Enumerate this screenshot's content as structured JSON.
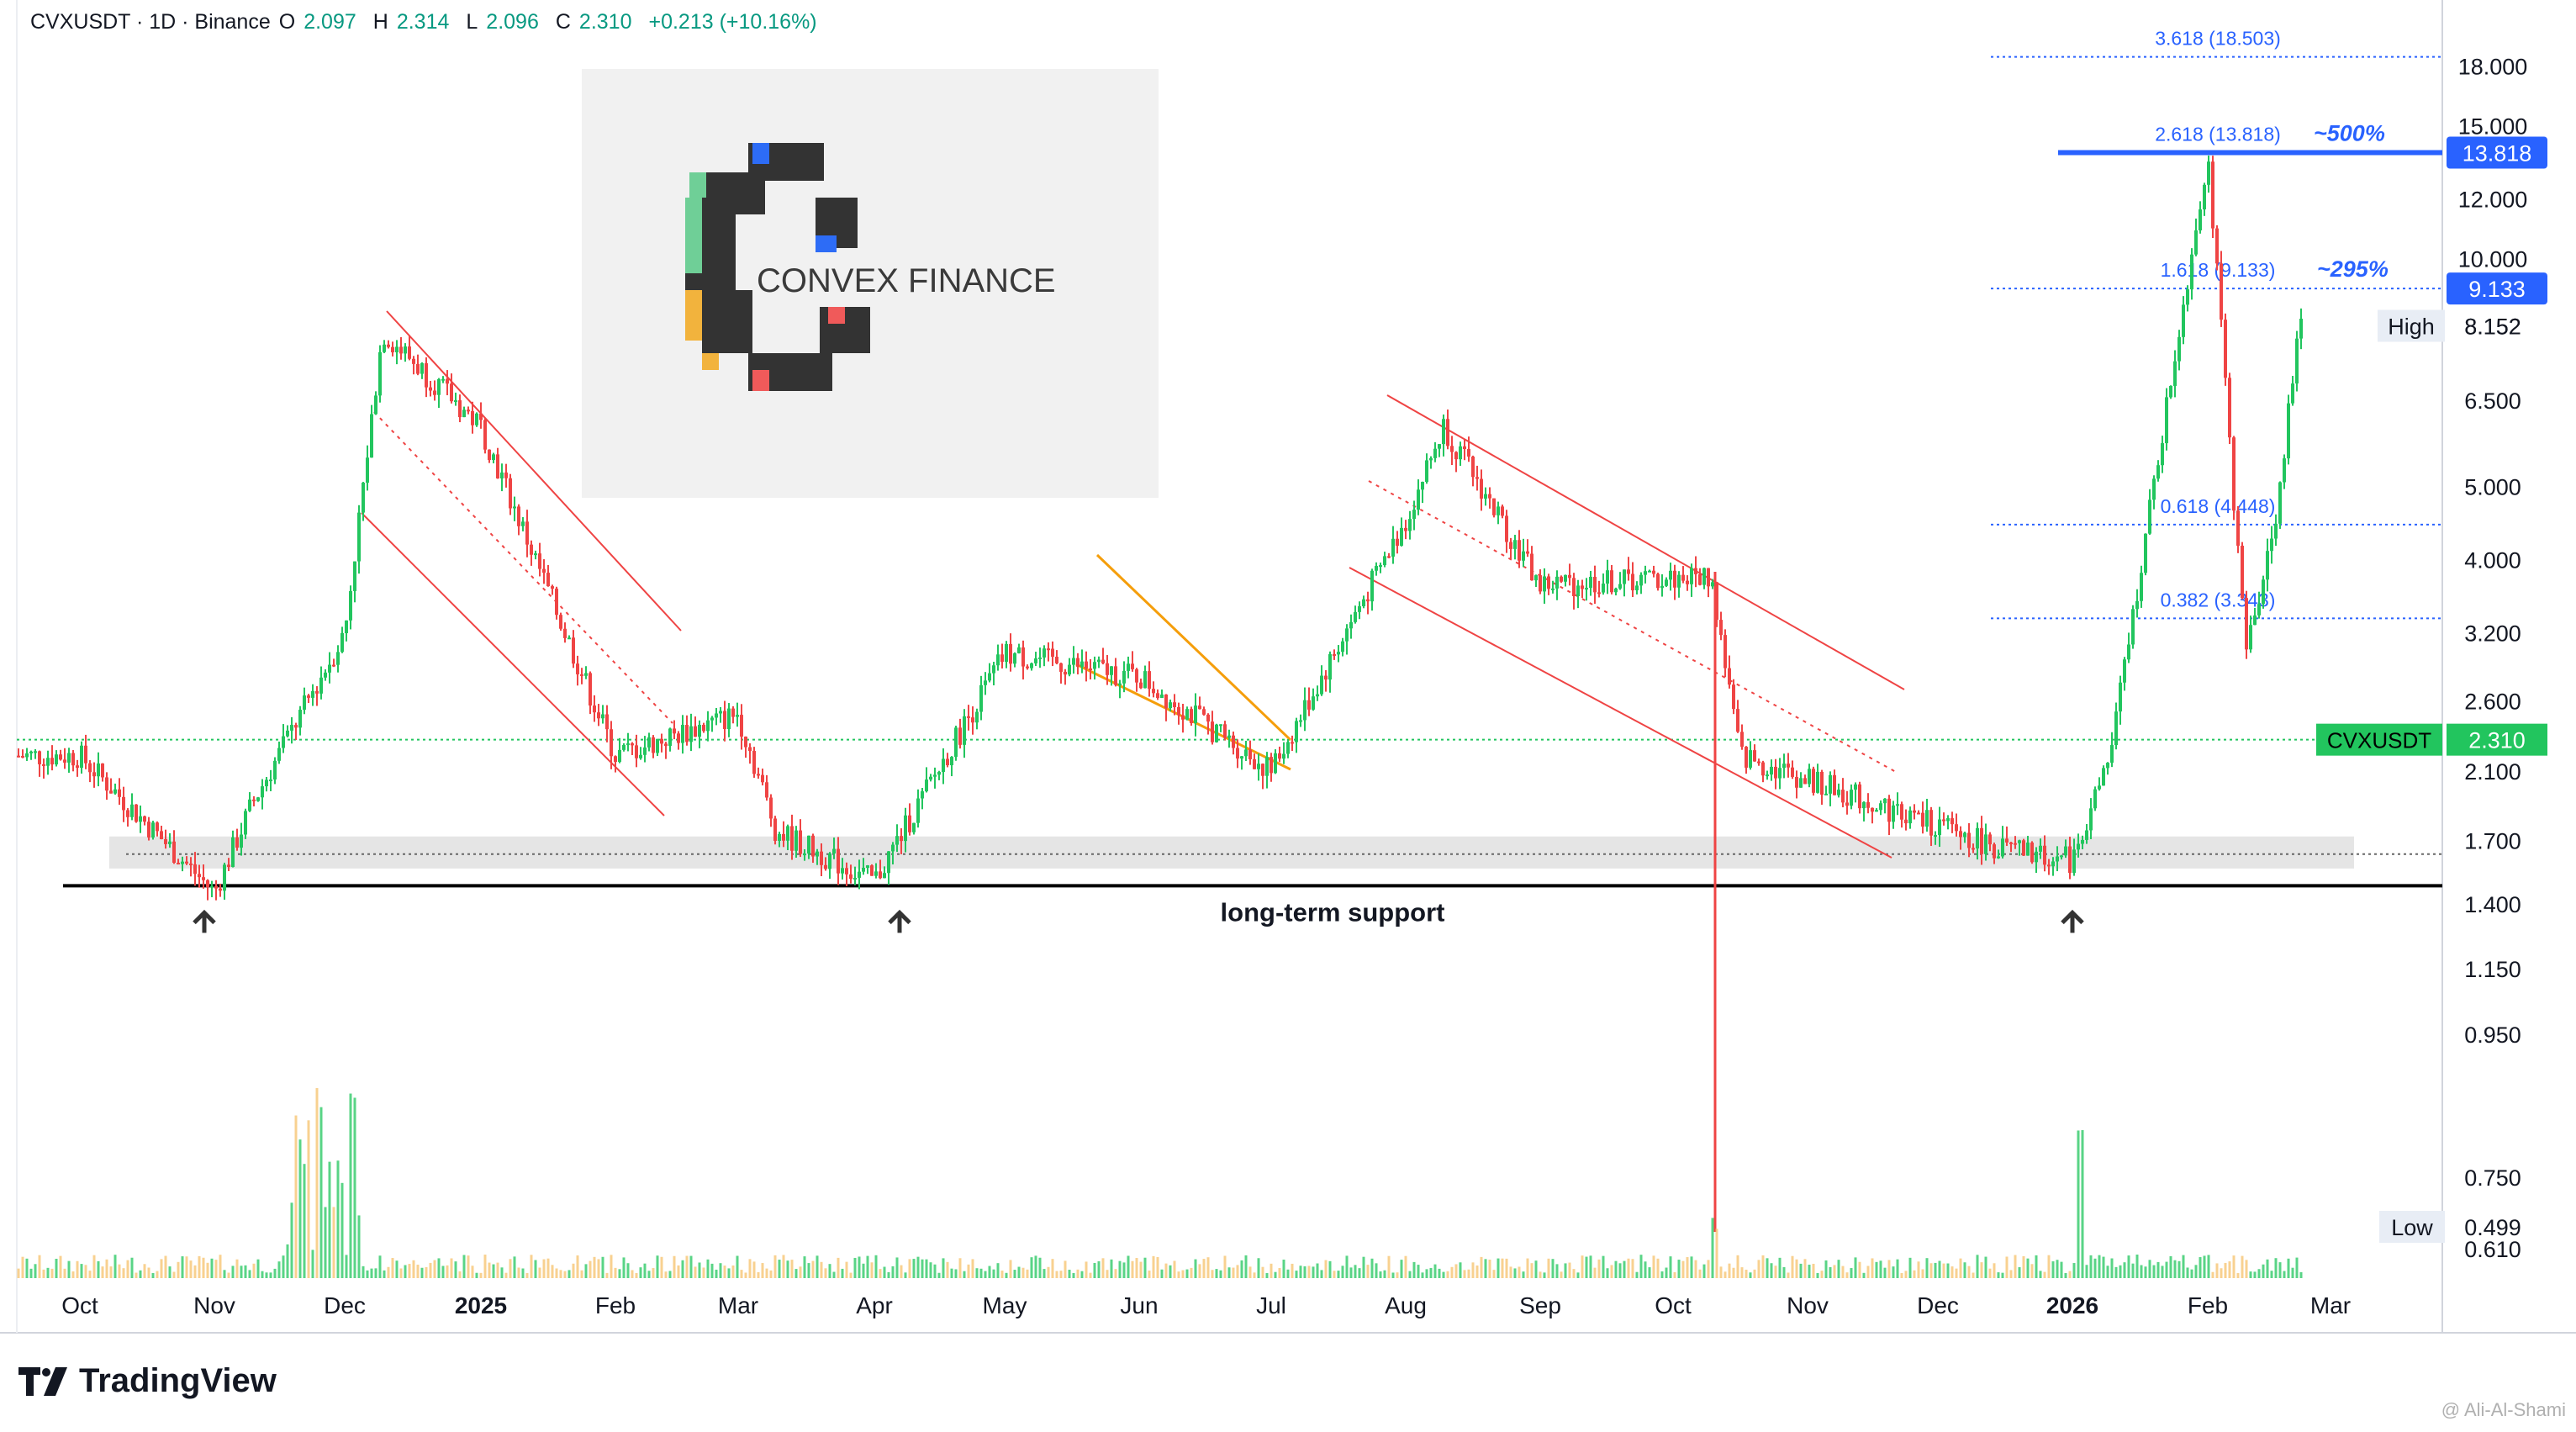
{
  "header": {
    "symbol": "CVXUSDT · 1D · Binance",
    "o_label": "O",
    "o_value": "2.097",
    "h_label": "H",
    "h_value": "2.314",
    "l_label": "L",
    "l_value": "2.096",
    "c_label": "C",
    "c_value": "2.310",
    "change": "+0.213 (+10.16%)"
  },
  "logo": {
    "text": "CONVEX FINANCE"
  },
  "branding": {
    "tradingview": "TradingView",
    "author": "@ Ali-Al-Shami"
  },
  "colors": {
    "up": "#22c55e",
    "down": "#ef4444",
    "fib": "#2962ff",
    "support_zone": "#dedede",
    "channel": "#ef4444",
    "wedge": "#f59e0b",
    "last_price": "#22c55e"
  },
  "chart_data": {
    "type": "candlestick",
    "symbol": "CVXUSDT",
    "interval": "1D",
    "exchange": "Binance",
    "scale": "log",
    "x_labels": [
      "Oct",
      "Nov",
      "Dec",
      "2025",
      "Feb",
      "Mar",
      "Apr",
      "May",
      "Jun",
      "Jul",
      "Aug",
      "Sep",
      "Oct",
      "Nov",
      "Dec",
      "2026",
      "Feb",
      "Mar"
    ],
    "y_ticks": [
      "1.150",
      "1.400",
      "1.700",
      "2.100",
      "2.600",
      "3.200",
      "4.000",
      "5.000",
      "6.500",
      "8.152",
      "10.000",
      "12.000",
      "15.000",
      "18.000"
    ],
    "y_tick_values": [
      1.15,
      1.4,
      1.7,
      2.1,
      2.6,
      3.2,
      4.0,
      5.0,
      6.5,
      8.152,
      10.0,
      12.0,
      15.0,
      18.0
    ],
    "ylim": [
      0.42,
      22.0
    ],
    "price_path": [
      [
        "Oct",
        2.2
      ],
      [
        "Nov",
        1.45
      ],
      [
        "Nov",
        1.9
      ],
      [
        "Dec",
        3.2
      ],
      [
        "Dec",
        8.0
      ],
      [
        "2025",
        6.0
      ],
      [
        "Feb",
        2.2
      ],
      [
        "Mar",
        2.5
      ],
      [
        "Mar",
        1.75
      ],
      [
        "Apr",
        1.5
      ],
      [
        "May",
        3.0
      ],
      [
        "Jun",
        2.8
      ],
      [
        "Jul",
        2.1
      ],
      [
        "Aug",
        4.5
      ],
      [
        "Aug",
        6.0
      ],
      [
        "Sep",
        3.7
      ],
      [
        "Oct",
        3.8
      ],
      [
        "Oct",
        2.2
      ],
      [
        "Nov",
        1.9
      ],
      [
        "Dec",
        1.65
      ],
      [
        "2026",
        1.6
      ],
      [
        "2026",
        2.2
      ],
      [
        "Feb",
        3.0
      ],
      [
        "Feb",
        4.5
      ],
      [
        "Feb",
        9.1
      ],
      [
        "Feb",
        13.8
      ]
    ],
    "last_price": {
      "label": "CVXUSDT",
      "value": "2.310"
    },
    "fib_levels": [
      {
        "label": "3.618 (18.503)",
        "value": 18.503
      },
      {
        "label": "2.618 (13.818)",
        "value": 13.818,
        "tag": "13.818",
        "pct": "~500%"
      },
      {
        "label": "1.618 (9.133)",
        "value": 9.133,
        "tag": "9.133",
        "pct": "~295%"
      },
      {
        "label": "0.618 (4.448)",
        "value": 4.448
      },
      {
        "label": "0.382 (3.343)",
        "value": 3.343
      }
    ],
    "high": {
      "label": "High",
      "value": "8.152"
    },
    "low": {
      "label": "Low",
      "value": "0.499"
    },
    "volume_ticks": [
      "0.950",
      "0.750",
      "0.610"
    ],
    "support_label": "long-term support",
    "support_value": 1.48
  }
}
